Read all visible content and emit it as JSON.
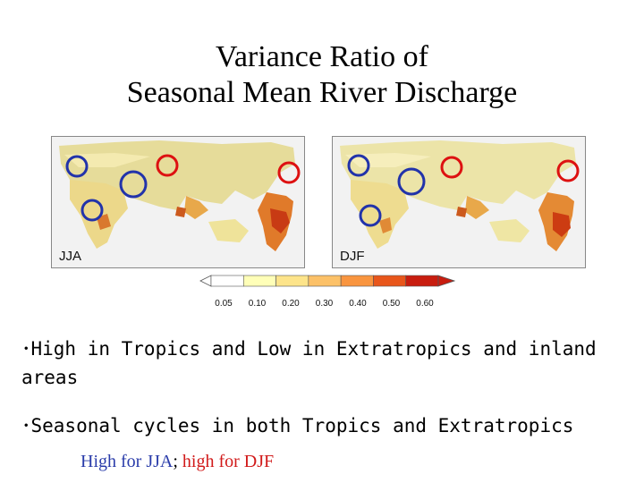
{
  "title": {
    "line1": "Variance Ratio of",
    "line2": "Seasonal Mean River Discharge"
  },
  "panels": [
    {
      "label": "JJA"
    },
    {
      "label": "DJF"
    }
  ],
  "colorbar": {
    "ticks": [
      "0.05",
      "0.10",
      "0.20",
      "0.30",
      "0.40",
      "0.50",
      "0.60"
    ],
    "colors": [
      "#ffffff",
      "#ffffb8",
      "#fde48a",
      "#fcc168",
      "#f9953f",
      "#e8561b",
      "#c81d0f"
    ]
  },
  "bullets": [
    "･High in Tropics and Low in Extratropics and inland areas",
    "･Seasonal cycles in both Tropics and Extratropics"
  ],
  "subline": {
    "part1": "High for JJA",
    "sep": "; ",
    "part2": "high for DJF",
    "color1": "#2a3caa",
    "color2": "#d11a1a"
  }
}
